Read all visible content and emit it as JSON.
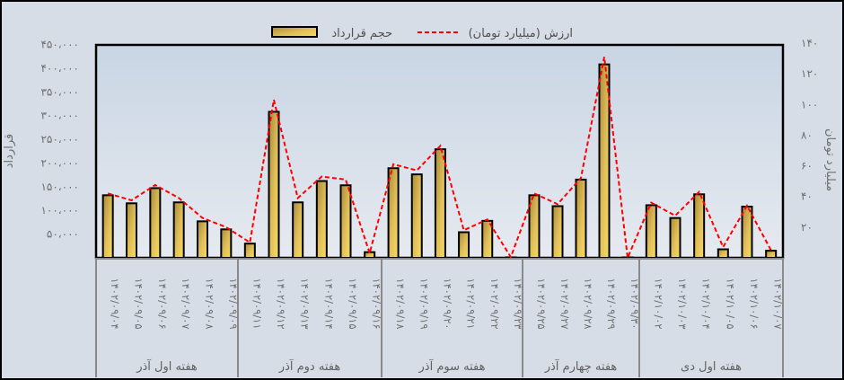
{
  "chart_data": {
    "type": "bar",
    "title": "",
    "legend": {
      "position": "top",
      "entries": [
        {
          "name": "حجم قرارداد",
          "type": "bar",
          "color": "#e8c44c"
        },
        {
          "name": "ارزش (میلیارد تومان)",
          "type": "line",
          "color": "#ff0000",
          "style": "dashed"
        }
      ]
    },
    "ylabel_left": "قرارداد",
    "ylabel_right": "میلیارد تومان",
    "ylim_left": [
      0,
      450000
    ],
    "ylim_right": [
      0,
      140
    ],
    "yticks_left": [
      "۵۰،۰۰۰",
      "۱۰۰،۰۰۰",
      "۱۵۰،۰۰۰",
      "۲۰۰،۰۰۰",
      "۲۵۰،۰۰۰",
      "۳۰۰،۰۰۰",
      "۳۵۰،۰۰۰",
      "۴۰۰،۰۰۰",
      "۴۵۰،۰۰۰"
    ],
    "yticks_left_values": [
      50000,
      100000,
      150000,
      200000,
      250000,
      300000,
      350000,
      400000,
      450000
    ],
    "yticks_right": [
      "۲۰",
      "۴۰",
      "۶۰",
      "۸۰",
      "۱۰۰",
      "۱۲۰",
      "۱۴۰"
    ],
    "yticks_right_values": [
      20,
      40,
      60,
      80,
      100,
      120,
      140
    ],
    "grid": false,
    "groups": [
      {
        "label": "هفته اول آذر",
        "count": 6
      },
      {
        "label": "هفته دوم آذر",
        "count": 6
      },
      {
        "label": "هفته سوم آذر",
        "count": 6
      },
      {
        "label": "هفته چهارم آذر",
        "count": 5
      },
      {
        "label": "هفته اول دی",
        "count": 6
      }
    ],
    "categories": [
      "۱۴۰۲/۰۹/۰۴",
      "۱۴۰۲/۰۹/۰۵",
      "۱۴۰۲/۰۹/۰۶",
      "۱۴۰۲/۰۹/۰۷",
      "۱۴۰۲/۰۹/۰۸",
      "۱۴۰۲/۰۹/۰۹",
      "۱۴۰۲/۰۹/۱۱",
      "۱۴۰۲/۰۹/۱۲",
      "۱۴۰۲/۰۹/۱۳",
      "۱۴۰۲/۰۹/۱۴",
      "۱۴۰۲/۰۹/۱۵",
      "۱۴۰۲/۰۹/۱۶",
      "۱۴۰۲/۰۹/۱۸",
      "۱۴۰۲/۰۹/۱۹",
      "۱۴۰۲/۰۹/۲۰",
      "۱۴۰۲/۰۹/۲۱",
      "۱۴۰۲/۰۹/۲۲",
      "۱۴۰۲/۰۹/۲۳",
      "۱۴۰۲/۰۹/۲۵",
      "۱۴۰۲/۰۹/۲۷",
      "۱۴۰۲/۰۹/۲۸",
      "۱۴۰۲/۰۹/۲۹",
      "۱۴۰۲/۰۹/۳۰",
      "۱۴۰۲/۱۰/۰۲",
      "۱۴۰۲/۱۰/۰۳",
      "۱۴۰۲/۱۰/۰۴",
      "۱۴۰۲/۱۰/۰۵",
      "۱۴۰۲/۱۰/۰۶",
      "۱۴۰۲/۱۰/۰۷"
    ],
    "series": [
      {
        "name": "حجم قرارداد",
        "type": "bar",
        "axis": "left",
        "values": [
          132000,
          115000,
          147000,
          117000,
          77000,
          60000,
          30000,
          308000,
          117000,
          162000,
          153000,
          12000,
          189000,
          176000,
          229000,
          54000,
          78000,
          1000,
          132000,
          109000,
          165000,
          408000,
          1000,
          111000,
          84000,
          134000,
          18000,
          108000,
          15000
        ]
      },
      {
        "name": "ارزش (میلیارد تومان)",
        "type": "line",
        "axis": "right",
        "values": [
          42,
          37.5,
          47.5,
          39,
          26,
          20,
          10,
          103,
          39,
          53,
          51,
          3,
          61,
          57,
          73,
          18,
          25,
          0.5,
          42,
          35,
          52,
          131,
          0,
          36,
          27.5,
          43,
          7,
          34,
          5
        ]
      }
    ]
  }
}
